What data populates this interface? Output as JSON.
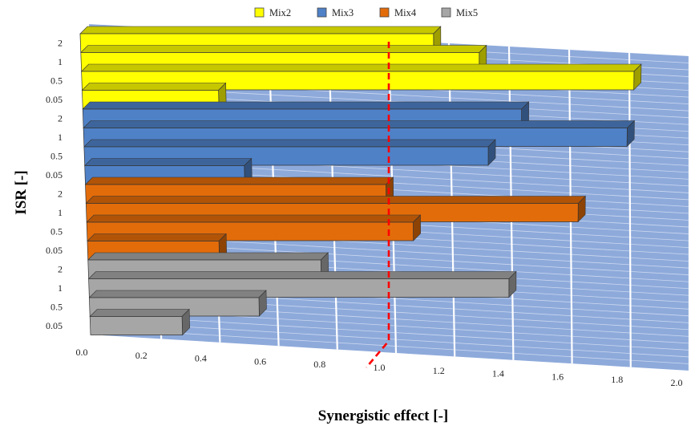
{
  "chart_data": {
    "type": "bar",
    "orientation": "horizontal",
    "style": "3d",
    "xlabel": "Synergistic effect [-]",
    "ylabel": "ISR [-]",
    "xlim": [
      0,
      2
    ],
    "x_ticks": [
      "0.0",
      "0.2",
      "0.4",
      "0.6",
      "0.8",
      "1.0",
      "1.2",
      "1.4",
      "1.6",
      "1.8",
      "2.0"
    ],
    "legend_position": "top",
    "reference_line": {
      "x": 1.0,
      "color": "#ff0000",
      "style": "dashed"
    },
    "background": {
      "wall_color": "#8eaadb",
      "grid": true
    },
    "categories": [
      "2",
      "1",
      "0.5",
      "0.05"
    ],
    "series": [
      {
        "name": "Mix2",
        "color": "#ffff00",
        "values": [
          1.16,
          1.31,
          1.82,
          0.45
        ]
      },
      {
        "name": "Mix3",
        "color": "#4f81c7",
        "values": [
          1.45,
          1.8,
          1.34,
          0.53
        ]
      },
      {
        "name": "Mix4",
        "color": "#e36c0a",
        "values": [
          1.0,
          1.64,
          1.09,
          0.44
        ]
      },
      {
        "name": "Mix5",
        "color": "#a6a6a6",
        "values": [
          0.78,
          1.41,
          0.57,
          0.31
        ]
      }
    ]
  }
}
